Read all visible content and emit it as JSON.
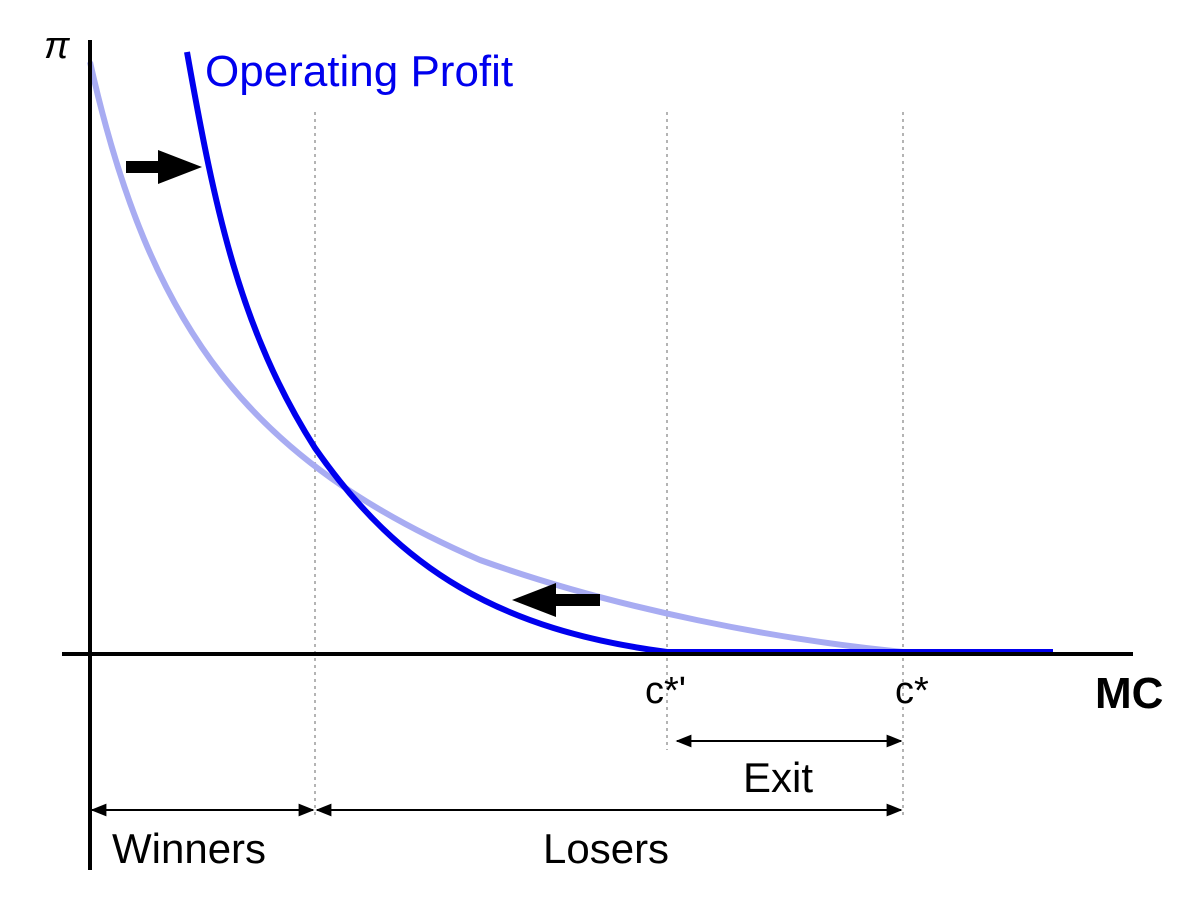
{
  "diagram": {
    "y_axis_label": "π",
    "x_axis_label": "MC",
    "curve_label": "Operating Profit",
    "cutoff_new_label": "c*'",
    "cutoff_old_label": "c*",
    "exit_label": "Exit",
    "winners_label": "Winners",
    "losers_label": "Losers"
  },
  "colors": {
    "new_curve": "#0000ee",
    "old_curve": "#a8acf2",
    "axes": "#000000",
    "guides": "#b4b4b4",
    "arrows": "#000000"
  }
}
